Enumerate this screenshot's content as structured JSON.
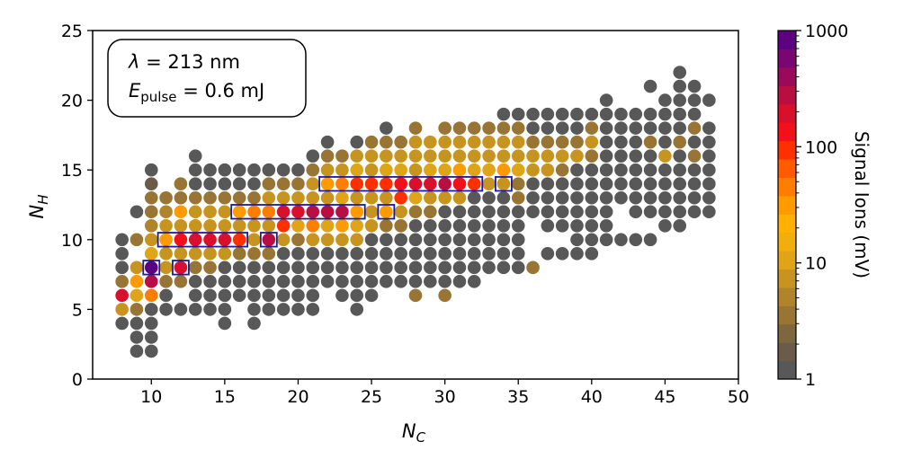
{
  "chart_data": {
    "type": "scatter",
    "x_axis": {
      "label_main": "N",
      "label_sub": "C",
      "lim": [
        6,
        50
      ],
      "ticks": [
        10,
        15,
        20,
        25,
        30,
        35,
        40,
        45,
        50
      ]
    },
    "y_axis": {
      "label_main": "N",
      "label_sub": "H",
      "lim": [
        0,
        25
      ],
      "ticks": [
        0,
        5,
        10,
        15,
        20,
        25
      ]
    },
    "annotation": {
      "line1_symbol": "λ",
      "line1_text": " = 213 nm",
      "line2_main": "E",
      "line2_sub": "pulse",
      "line2_text": " = 0.6 mJ"
    },
    "colorbar": {
      "label": "Signal Ions (mV)",
      "scale": "log",
      "lim": [
        1,
        1000
      ],
      "ticks": [
        {
          "value": 1,
          "label": "1"
        },
        {
          "value": 10,
          "label": "10"
        },
        {
          "value": 100,
          "label": "100"
        },
        {
          "value": 1000,
          "label": "1000"
        }
      ],
      "colors": [
        "#585858",
        "#6a5c48",
        "#7e663e",
        "#987534",
        "#b0842a",
        "#c89420",
        "#e0a418",
        "#f2ae0c",
        "#ffb000",
        "#ff9a00",
        "#ff7e00",
        "#ff5c00",
        "#ff3000",
        "#f2101a",
        "#d8102c",
        "#b80e42",
        "#9a0a5a",
        "#7a0672",
        "#5c0280"
      ]
    },
    "ranges": [
      {
        "nc": 8,
        "nh_min": 4,
        "nh_max": 10
      },
      {
        "nc": 9,
        "nh_min": 2,
        "nh_max": 12
      },
      {
        "nc": 10,
        "nh_min": 2,
        "nh_max": 15
      },
      {
        "nc": 11,
        "nh_min": 5,
        "nh_max": 13
      },
      {
        "nc": 12,
        "nh_min": 5,
        "nh_max": 14
      },
      {
        "nc": 13,
        "nh_min": 5,
        "nh_max": 16
      },
      {
        "nc": 14,
        "nh_min": 5,
        "nh_max": 15
      },
      {
        "nc": 15,
        "nh_min": 4,
        "nh_max": 15
      },
      {
        "nc": 16,
        "nh_min": 5,
        "nh_max": 15
      },
      {
        "nc": 17,
        "nh_min": 4,
        "nh_max": 15
      },
      {
        "nc": 18,
        "nh_min": 5,
        "nh_max": 15
      },
      {
        "nc": 19,
        "nh_min": 5,
        "nh_max": 15
      },
      {
        "nc": 20,
        "nh_min": 5,
        "nh_max": 15
      },
      {
        "nc": 21,
        "nh_min": 5,
        "nh_max": 16
      },
      {
        "nc": 22,
        "nh_min": 6,
        "nh_max": 17
      },
      {
        "nc": 23,
        "nh_min": 6,
        "nh_max": 16
      },
      {
        "nc": 24,
        "nh_min": 5,
        "nh_max": 17
      },
      {
        "nc": 25,
        "nh_min": 6,
        "nh_max": 17
      },
      {
        "nc": 26,
        "nh_min": 7,
        "nh_max": 18
      },
      {
        "nc": 27,
        "nh_min": 7,
        "nh_max": 17
      },
      {
        "nc": 28,
        "nh_min": 6,
        "nh_max": 18
      },
      {
        "nc": 29,
        "nh_min": 7,
        "nh_max": 17
      },
      {
        "nc": 30,
        "nh_min": 6,
        "nh_max": 18
      },
      {
        "nc": 31,
        "nh_min": 7,
        "nh_max": 18
      },
      {
        "nc": 32,
        "nh_min": 7,
        "nh_max": 18
      },
      {
        "nc": 33,
        "nh_min": 8,
        "nh_max": 18
      },
      {
        "nc": 34,
        "nh_min": 8,
        "nh_max": 19
      },
      {
        "nc": 35,
        "nh_min": 8,
        "nh_max": 19
      },
      {
        "nc": 36,
        "nh_min": 8,
        "nh_max": 19
      },
      {
        "nc": 37,
        "nh_min": 9,
        "nh_max": 19
      },
      {
        "nc": 38,
        "nh_min": 9,
        "nh_max": 19
      },
      {
        "nc": 39,
        "nh_min": 9,
        "nh_max": 19
      },
      {
        "nc": 40,
        "nh_min": 9,
        "nh_max": 19
      },
      {
        "nc": 41,
        "nh_min": 10,
        "nh_max": 20
      },
      {
        "nc": 42,
        "nh_min": 10,
        "nh_max": 19
      },
      {
        "nc": 43,
        "nh_min": 10,
        "nh_max": 19
      },
      {
        "nc": 44,
        "nh_min": 10,
        "nh_max": 21
      },
      {
        "nc": 45,
        "nh_min": 11,
        "nh_max": 20
      },
      {
        "nc": 46,
        "nh_min": 11,
        "nh_max": 22
      },
      {
        "nc": 47,
        "nh_min": 12,
        "nh_max": 21
      },
      {
        "nc": 48,
        "nh_min": 12,
        "nh_max": 20
      }
    ],
    "gaps": [
      [
        8,
        5
      ],
      [
        9,
        9
      ],
      [
        9,
        11
      ],
      [
        12,
        6
      ],
      [
        16,
        5
      ],
      [
        22,
        6
      ],
      [
        27,
        6
      ],
      [
        29,
        6
      ],
      [
        36,
        9
      ],
      [
        36,
        10
      ],
      [
        36,
        11
      ],
      [
        37,
        10
      ],
      [
        38,
        10
      ],
      [
        42,
        11
      ],
      [
        42,
        12
      ],
      [
        43,
        11
      ],
      [
        44,
        11
      ],
      [
        44,
        20
      ],
      [
        48,
        19
      ]
    ],
    "signal_points": [
      {
        "nc": 8,
        "nh": 5,
        "mv": 8
      },
      {
        "nc": 8,
        "nh": 6,
        "mv": 200
      },
      {
        "nc": 8,
        "nh": 7,
        "mv": 4
      },
      {
        "nc": 9,
        "nh": 5,
        "mv": 4
      },
      {
        "nc": 9,
        "nh": 6,
        "mv": 12
      },
      {
        "nc": 9,
        "nh": 7,
        "mv": 30
      },
      {
        "nc": 9,
        "nh": 8,
        "mv": 8
      },
      {
        "nc": 9,
        "nh": 10,
        "mv": 4
      },
      {
        "nc": 10,
        "nh": 6,
        "mv": 50
      },
      {
        "nc": 10,
        "nh": 7,
        "mv": 300
      },
      {
        "nc": 10,
        "nh": 8,
        "mv": 800
      },
      {
        "nc": 10,
        "nh": 9,
        "mv": 12
      },
      {
        "nc": 10,
        "nh": 10,
        "mv": 8
      },
      {
        "nc": 10,
        "nh": 11,
        "mv": 6
      },
      {
        "nc": 10,
        "nh": 12,
        "mv": 4
      },
      {
        "nc": 10,
        "nh": 13,
        "mv": 3
      },
      {
        "nc": 10,
        "nh": 14,
        "mv": 2
      },
      {
        "nc": 11,
        "nh": 7,
        "mv": 4
      },
      {
        "nc": 11,
        "nh": 8,
        "mv": 8
      },
      {
        "nc": 11,
        "nh": 9,
        "mv": 8
      },
      {
        "nc": 11,
        "nh": 10,
        "mv": 30
      },
      {
        "nc": 11,
        "nh": 11,
        "mv": 8
      },
      {
        "nc": 11,
        "nh": 12,
        "mv": 6
      },
      {
        "nc": 11,
        "nh": 13,
        "mv": 4
      },
      {
        "nc": 12,
        "nh": 7,
        "mv": 4
      },
      {
        "nc": 12,
        "nh": 8,
        "mv": 200
      },
      {
        "nc": 12,
        "nh": 9,
        "mv": 8
      },
      {
        "nc": 12,
        "nh": 10,
        "mv": 150
      },
      {
        "nc": 12,
        "nh": 11,
        "mv": 8
      },
      {
        "nc": 12,
        "nh": 12,
        "mv": 30
      },
      {
        "nc": 12,
        "nh": 13,
        "mv": 4
      },
      {
        "nc": 12,
        "nh": 14,
        "mv": 3
      },
      {
        "nc": 13,
        "nh": 8,
        "mv": 4
      },
      {
        "nc": 13,
        "nh": 9,
        "mv": 8
      },
      {
        "nc": 13,
        "nh": 10,
        "mv": 200
      },
      {
        "nc": 13,
        "nh": 11,
        "mv": 8
      },
      {
        "nc": 13,
        "nh": 12,
        "mv": 8
      },
      {
        "nc": 13,
        "nh": 13,
        "mv": 4
      },
      {
        "nc": 14,
        "nh": 8,
        "mv": 4
      },
      {
        "nc": 14,
        "nh": 9,
        "mv": 8
      },
      {
        "nc": 14,
        "nh": 10,
        "mv": 200
      },
      {
        "nc": 14,
        "nh": 11,
        "mv": 8
      },
      {
        "nc": 14,
        "nh": 12,
        "mv": 8
      },
      {
        "nc": 14,
        "nh": 13,
        "mv": 4
      },
      {
        "nc": 15,
        "nh": 9,
        "mv": 8
      },
      {
        "nc": 15,
        "nh": 10,
        "mv": 200
      },
      {
        "nc": 15,
        "nh": 11,
        "mv": 8
      },
      {
        "nc": 15,
        "nh": 12,
        "mv": 8
      },
      {
        "nc": 15,
        "nh": 13,
        "mv": 4
      },
      {
        "nc": 16,
        "nh": 9,
        "mv": 4
      },
      {
        "nc": 16,
        "nh": 10,
        "mv": 100
      },
      {
        "nc": 16,
        "nh": 11,
        "mv": 8
      },
      {
        "nc": 16,
        "nh": 12,
        "mv": 30
      },
      {
        "nc": 16,
        "nh": 13,
        "mv": 4
      },
      {
        "nc": 17,
        "nh": 9,
        "mv": 4
      },
      {
        "nc": 17,
        "nh": 10,
        "mv": 8
      },
      {
        "nc": 17,
        "nh": 11,
        "mv": 8
      },
      {
        "nc": 17,
        "nh": 12,
        "mv": 50
      },
      {
        "nc": 17,
        "nh": 13,
        "mv": 4
      },
      {
        "nc": 18,
        "nh": 9,
        "mv": 4
      },
      {
        "nc": 18,
        "nh": 10,
        "mv": 300
      },
      {
        "nc": 18,
        "nh": 11,
        "mv": 8
      },
      {
        "nc": 18,
        "nh": 12,
        "mv": 50
      },
      {
        "nc": 18,
        "nh": 13,
        "mv": 8
      },
      {
        "nc": 18,
        "nh": 14,
        "mv": 4
      },
      {
        "nc": 19,
        "nh": 10,
        "mv": 8
      },
      {
        "nc": 19,
        "nh": 11,
        "mv": 100
      },
      {
        "nc": 19,
        "nh": 12,
        "mv": 200
      },
      {
        "nc": 19,
        "nh": 13,
        "mv": 8
      },
      {
        "nc": 19,
        "nh": 14,
        "mv": 4
      },
      {
        "nc": 20,
        "nh": 10,
        "mv": 4
      },
      {
        "nc": 20,
        "nh": 11,
        "mv": 12
      },
      {
        "nc": 20,
        "nh": 12,
        "mv": 200
      },
      {
        "nc": 20,
        "nh": 13,
        "mv": 8
      },
      {
        "nc": 20,
        "nh": 14,
        "mv": 4
      },
      {
        "nc": 21,
        "nh": 10,
        "mv": 8
      },
      {
        "nc": 21,
        "nh": 11,
        "mv": 50
      },
      {
        "nc": 21,
        "nh": 12,
        "mv": 300
      },
      {
        "nc": 21,
        "nh": 13,
        "mv": 8
      },
      {
        "nc": 21,
        "nh": 14,
        "mv": 8
      },
      {
        "nc": 21,
        "nh": 15,
        "mv": 4
      },
      {
        "nc": 22,
        "nh": 10,
        "mv": 8
      },
      {
        "nc": 22,
        "nh": 11,
        "mv": 12
      },
      {
        "nc": 22,
        "nh": 12,
        "mv": 300
      },
      {
        "nc": 22,
        "nh": 13,
        "mv": 8
      },
      {
        "nc": 22,
        "nh": 14,
        "mv": 30
      },
      {
        "nc": 22,
        "nh": 15,
        "mv": 8
      },
      {
        "nc": 22,
        "nh": 16,
        "mv": 4
      },
      {
        "nc": 23,
        "nh": 10,
        "mv": 8
      },
      {
        "nc": 23,
        "nh": 11,
        "mv": 30
      },
      {
        "nc": 23,
        "nh": 12,
        "mv": 300
      },
      {
        "nc": 23,
        "nh": 13,
        "mv": 12
      },
      {
        "nc": 23,
        "nh": 14,
        "mv": 50
      },
      {
        "nc": 23,
        "nh": 15,
        "mv": 8
      },
      {
        "nc": 23,
        "nh": 16,
        "mv": 4
      },
      {
        "nc": 24,
        "nh": 10,
        "mv": 8
      },
      {
        "nc": 24,
        "nh": 11,
        "mv": 12
      },
      {
        "nc": 24,
        "nh": 12,
        "mv": 30
      },
      {
        "nc": 24,
        "nh": 13,
        "mv": 8
      },
      {
        "nc": 24,
        "nh": 14,
        "mv": 100
      },
      {
        "nc": 24,
        "nh": 15,
        "mv": 12
      },
      {
        "nc": 24,
        "nh": 16,
        "mv": 8
      },
      {
        "nc": 25,
        "nh": 11,
        "mv": 8
      },
      {
        "nc": 25,
        "nh": 12,
        "mv": 8
      },
      {
        "nc": 25,
        "nh": 13,
        "mv": 8
      },
      {
        "nc": 25,
        "nh": 14,
        "mv": 100
      },
      {
        "nc": 25,
        "nh": 15,
        "mv": 8
      },
      {
        "nc": 25,
        "nh": 16,
        "mv": 8
      },
      {
        "nc": 25,
        "nh": 17,
        "mv": 4
      },
      {
        "nc": 26,
        "nh": 11,
        "mv": 4
      },
      {
        "nc": 26,
        "nh": 12,
        "mv": 30
      },
      {
        "nc": 26,
        "nh": 13,
        "mv": 8
      },
      {
        "nc": 26,
        "nh": 14,
        "mv": 100
      },
      {
        "nc": 26,
        "nh": 15,
        "mv": 12
      },
      {
        "nc": 26,
        "nh": 16,
        "mv": 8
      },
      {
        "nc": 26,
        "nh": 17,
        "mv": 4
      },
      {
        "nc": 27,
        "nh": 11,
        "mv": 4
      },
      {
        "nc": 27,
        "nh": 12,
        "mv": 8
      },
      {
        "nc": 27,
        "nh": 13,
        "mv": 100
      },
      {
        "nc": 27,
        "nh": 14,
        "mv": 150
      },
      {
        "nc": 27,
        "nh": 15,
        "mv": 12
      },
      {
        "nc": 27,
        "nh": 16,
        "mv": 8
      },
      {
        "nc": 27,
        "nh": 17,
        "mv": 4
      },
      {
        "nc": 28,
        "nh": 6,
        "mv": 4
      },
      {
        "nc": 28,
        "nh": 12,
        "mv": 4
      },
      {
        "nc": 28,
        "nh": 13,
        "mv": 12
      },
      {
        "nc": 28,
        "nh": 14,
        "mv": 200
      },
      {
        "nc": 28,
        "nh": 15,
        "mv": 8
      },
      {
        "nc": 28,
        "nh": 16,
        "mv": 8
      },
      {
        "nc": 28,
        "nh": 17,
        "mv": 8
      },
      {
        "nc": 28,
        "nh": 18,
        "mv": 4
      },
      {
        "nc": 29,
        "nh": 12,
        "mv": 4
      },
      {
        "nc": 29,
        "nh": 13,
        "mv": 8
      },
      {
        "nc": 29,
        "nh": 14,
        "mv": 200
      },
      {
        "nc": 29,
        "nh": 15,
        "mv": 12
      },
      {
        "nc": 29,
        "nh": 16,
        "mv": 8
      },
      {
        "nc": 29,
        "nh": 17,
        "mv": 8
      },
      {
        "nc": 30,
        "nh": 6,
        "mv": 4
      },
      {
        "nc": 30,
        "nh": 13,
        "mv": 8
      },
      {
        "nc": 30,
        "nh": 14,
        "mv": 300
      },
      {
        "nc": 30,
        "nh": 15,
        "mv": 12
      },
      {
        "nc": 30,
        "nh": 16,
        "mv": 8
      },
      {
        "nc": 30,
        "nh": 17,
        "mv": 8
      },
      {
        "nc": 30,
        "nh": 18,
        "mv": 4
      },
      {
        "nc": 31,
        "nh": 13,
        "mv": 8
      },
      {
        "nc": 31,
        "nh": 14,
        "mv": 150
      },
      {
        "nc": 31,
        "nh": 15,
        "mv": 30
      },
      {
        "nc": 31,
        "nh": 16,
        "mv": 8
      },
      {
        "nc": 31,
        "nh": 17,
        "mv": 8
      },
      {
        "nc": 31,
        "nh": 18,
        "mv": 4
      },
      {
        "nc": 32,
        "nh": 14,
        "mv": 100
      },
      {
        "nc": 32,
        "nh": 15,
        "mv": 12
      },
      {
        "nc": 32,
        "nh": 16,
        "mv": 8
      },
      {
        "nc": 32,
        "nh": 17,
        "mv": 8
      },
      {
        "nc": 32,
        "nh": 18,
        "mv": 4
      },
      {
        "nc": 33,
        "nh": 14,
        "mv": 8
      },
      {
        "nc": 33,
        "nh": 15,
        "mv": 12
      },
      {
        "nc": 33,
        "nh": 16,
        "mv": 8
      },
      {
        "nc": 33,
        "nh": 17,
        "mv": 8
      },
      {
        "nc": 33,
        "nh": 18,
        "mv": 4
      },
      {
        "nc": 34,
        "nh": 14,
        "mv": 8
      },
      {
        "nc": 34,
        "nh": 15,
        "mv": 30
      },
      {
        "nc": 34,
        "nh": 16,
        "mv": 8
      },
      {
        "nc": 34,
        "nh": 17,
        "mv": 8
      },
      {
        "nc": 34,
        "nh": 18,
        "mv": 4
      },
      {
        "nc": 35,
        "nh": 13,
        "mv": 4
      },
      {
        "nc": 35,
        "nh": 14,
        "mv": 4
      },
      {
        "nc": 35,
        "nh": 15,
        "mv": 12
      },
      {
        "nc": 35,
        "nh": 16,
        "mv": 8
      },
      {
        "nc": 35,
        "nh": 17,
        "mv": 8
      },
      {
        "nc": 35,
        "nh": 18,
        "mv": 4
      },
      {
        "nc": 36,
        "nh": 8,
        "mv": 4
      },
      {
        "nc": 36,
        "nh": 15,
        "mv": 8
      },
      {
        "nc": 36,
        "nh": 16,
        "mv": 8
      },
      {
        "nc": 36,
        "nh": 17,
        "mv": 4
      },
      {
        "nc": 37,
        "nh": 15,
        "mv": 8
      },
      {
        "nc": 37,
        "nh": 16,
        "mv": 8
      },
      {
        "nc": 37,
        "nh": 17,
        "mv": 4
      },
      {
        "nc": 38,
        "nh": 15,
        "mv": 4
      },
      {
        "nc": 38,
        "nh": 16,
        "mv": 8
      },
      {
        "nc": 38,
        "nh": 17,
        "mv": 4
      },
      {
        "nc": 39,
        "nh": 16,
        "mv": 8
      },
      {
        "nc": 39,
        "nh": 17,
        "mv": 4
      },
      {
        "nc": 40,
        "nh": 16,
        "mv": 4
      },
      {
        "nc": 40,
        "nh": 17,
        "mv": 8
      },
      {
        "nc": 40,
        "nh": 18,
        "mv": 4
      },
      {
        "nc": 44,
        "nh": 17,
        "mv": 4
      },
      {
        "nc": 45,
        "nh": 16,
        "mv": 8
      },
      {
        "nc": 46,
        "nh": 17,
        "mv": 4
      },
      {
        "nc": 47,
        "nh": 16,
        "mv": 4
      },
      {
        "nc": 47,
        "nh": 18,
        "mv": 4
      }
    ],
    "highlight_boxes": [
      {
        "nc_start": 10,
        "nc_end": 10,
        "nh": 8
      },
      {
        "nc_start": 12,
        "nc_end": 12,
        "nh": 8
      },
      {
        "nc_start": 11,
        "nc_end": 16,
        "nh": 10
      },
      {
        "nc_start": 18,
        "nc_end": 18,
        "nh": 10
      },
      {
        "nc_start": 16,
        "nc_end": 24,
        "nh": 12
      },
      {
        "nc_start": 26,
        "nc_end": 26,
        "nh": 12
      },
      {
        "nc_start": 22,
        "nc_end": 32,
        "nh": 14
      },
      {
        "nc_start": 34,
        "nc_end": 34,
        "nh": 14
      }
    ]
  }
}
